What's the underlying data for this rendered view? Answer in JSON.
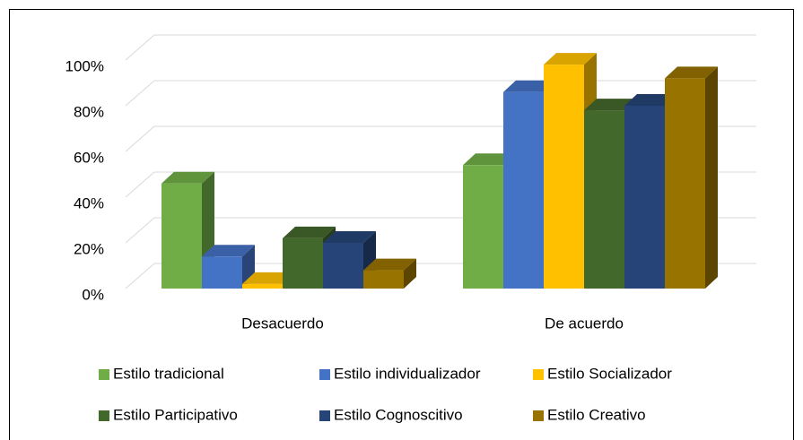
{
  "chart_data": {
    "type": "bar3d",
    "categories": [
      "Desacuerdo",
      "De acuerdo"
    ],
    "series": [
      {
        "name": "Estilo tradicional",
        "color": "#70ad47",
        "values": [
          46,
          54
        ]
      },
      {
        "name": "Estilo individualizador",
        "color": "#4472c4",
        "values": [
          14,
          86
        ]
      },
      {
        "name": "Estilo Socializador",
        "color": "#ffc000",
        "values": [
          2,
          98
        ]
      },
      {
        "name": "Estilo Participativo",
        "color": "#43682b",
        "values": [
          22,
          78
        ]
      },
      {
        "name": "Estilo Cognoscitivo",
        "color": "#264478",
        "values": [
          20,
          80
        ]
      },
      {
        "name": "Estilo Creativo",
        "color": "#997300",
        "values": [
          8,
          92
        ]
      }
    ],
    "ylim": [
      0,
      100
    ],
    "yticks": [
      {
        "value": 0,
        "label": "0%"
      },
      {
        "value": 20,
        "label": "20%"
      },
      {
        "value": 40,
        "label": "40%"
      },
      {
        "value": 60,
        "label": "60%"
      },
      {
        "value": 80,
        "label": "80%"
      },
      {
        "value": 100,
        "label": "100%"
      }
    ],
    "grid": true,
    "legend": "bottom"
  }
}
